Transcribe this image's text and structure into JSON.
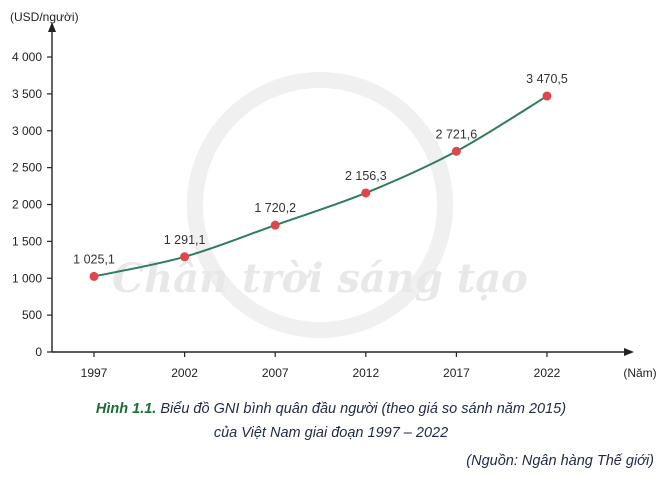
{
  "chart_data": {
    "type": "line",
    "x": [
      "1997",
      "2002",
      "2007",
      "2012",
      "2017",
      "2022"
    ],
    "values": [
      1025.1,
      1291.1,
      1720.2,
      2156.3,
      2721.6,
      3470.5
    ],
    "data_labels": [
      "1 025,1",
      "1 291,1",
      "1 720,2",
      "2 156,3",
      "2 721,6",
      "3 470,5"
    ],
    "y_ticks": [
      0,
      500,
      1000,
      1500,
      2000,
      2500,
      3000,
      3500,
      4000
    ],
    "y_tick_labels": [
      "0",
      "500",
      "1 000",
      "1 500",
      "2 000",
      "2 500",
      "3 000",
      "3 500",
      "4 000"
    ],
    "ylim": [
      0,
      4000
    ],
    "ylabel": "(USD/người)",
    "xlabel": "(Năm)",
    "grid": false,
    "line_color": "#2e7d5b",
    "marker_color": "#e0454c"
  },
  "caption": {
    "fig_label": "Hình 1.1.",
    "line1": " Biểu đồ GNI bình quân đầu người (theo giá so sánh năm 2015)",
    "line2": "của Việt Nam giai đoạn 1997 – 2022"
  },
  "source": "(Nguồn: Ngân hàng Thế giới)",
  "watermark": "Chân trời sáng tạo"
}
